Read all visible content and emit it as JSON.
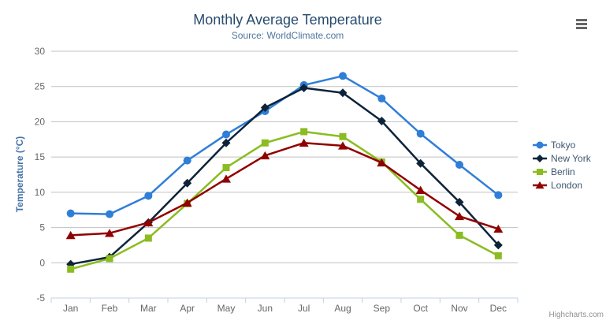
{
  "chart": {
    "title": "Monthly Average Temperature",
    "subtitle": "Source: WorldClimate.com",
    "credits_label": "Highcharts.com",
    "export_menu_icon": "hamburger-icon"
  },
  "chart_data": {
    "type": "line",
    "title": "Monthly Average Temperature",
    "subtitle": "Source: WorldClimate.com",
    "categories": [
      "Jan",
      "Feb",
      "Mar",
      "Apr",
      "May",
      "Jun",
      "Jul",
      "Aug",
      "Sep",
      "Oct",
      "Nov",
      "Dec"
    ],
    "series": [
      {
        "name": "Tokyo",
        "color": "#2f7ed8",
        "marker": "circle",
        "values": [
          7.0,
          6.9,
          9.5,
          14.5,
          18.2,
          21.5,
          25.2,
          26.5,
          23.3,
          18.3,
          13.9,
          9.6
        ]
      },
      {
        "name": "New York",
        "color": "#0d233a",
        "marker": "diamond",
        "values": [
          -0.2,
          0.8,
          5.7,
          11.3,
          17.0,
          22.0,
          24.8,
          24.1,
          20.1,
          14.1,
          8.6,
          2.5
        ]
      },
      {
        "name": "Berlin",
        "color": "#8bbc21",
        "marker": "square",
        "values": [
          -0.9,
          0.6,
          3.5,
          8.4,
          13.5,
          17.0,
          18.6,
          17.9,
          14.3,
          9.0,
          3.9,
          1.0
        ]
      },
      {
        "name": "London",
        "color": "#910000",
        "marker": "triangle",
        "values": [
          3.9,
          4.2,
          5.7,
          8.5,
          11.9,
          15.2,
          17.0,
          16.6,
          14.2,
          10.3,
          6.6,
          4.8
        ]
      }
    ],
    "xlabel": "",
    "ylabel": "Temperature (°C)",
    "ylim": [
      -5,
      30
    ],
    "ytick_step": 5,
    "yticks": [
      -5,
      0,
      5,
      10,
      15,
      20,
      25,
      30
    ],
    "grid": true,
    "legend_position": "right",
    "colors": {
      "title": "#274b6d",
      "subtitle": "#4d759e",
      "yaxis_title": "#4572a7",
      "grid": "#c0c0c0",
      "axis_line": "#c0d0e0",
      "axis_label": "#666666",
      "legend_text": "#3e576f",
      "credits": "#909090",
      "export_icon": "#666666",
      "background": "#ffffff"
    }
  }
}
